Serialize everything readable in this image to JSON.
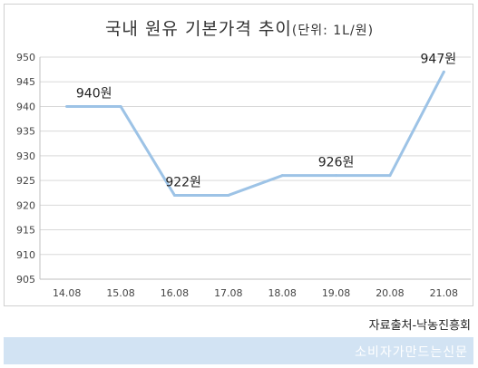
{
  "chart_data": {
    "type": "line",
    "title_main": "국내 원유 기본가격 추이",
    "title_unit": "(단위: 1L/원)",
    "categories": [
      "14.08",
      "15.08",
      "16.08",
      "17.08",
      "18.08",
      "19.08",
      "20.08",
      "21.08"
    ],
    "values": [
      940,
      940,
      922,
      922,
      926,
      926,
      926,
      947
    ],
    "ylim": [
      905,
      950
    ],
    "yticks": [
      905,
      910,
      915,
      920,
      925,
      930,
      935,
      940,
      945,
      950
    ],
    "grid": true,
    "line_color": "#9dc3e6",
    "data_labels": [
      {
        "index": 0,
        "text": "940원"
      },
      {
        "index": 2,
        "text": "922원"
      },
      {
        "index": 5,
        "text": "926원"
      },
      {
        "index": 7,
        "text": "947원"
      }
    ]
  },
  "source_text": "자료출처-낙농진흥회",
  "footer_brand": "소비자가만드는신문"
}
